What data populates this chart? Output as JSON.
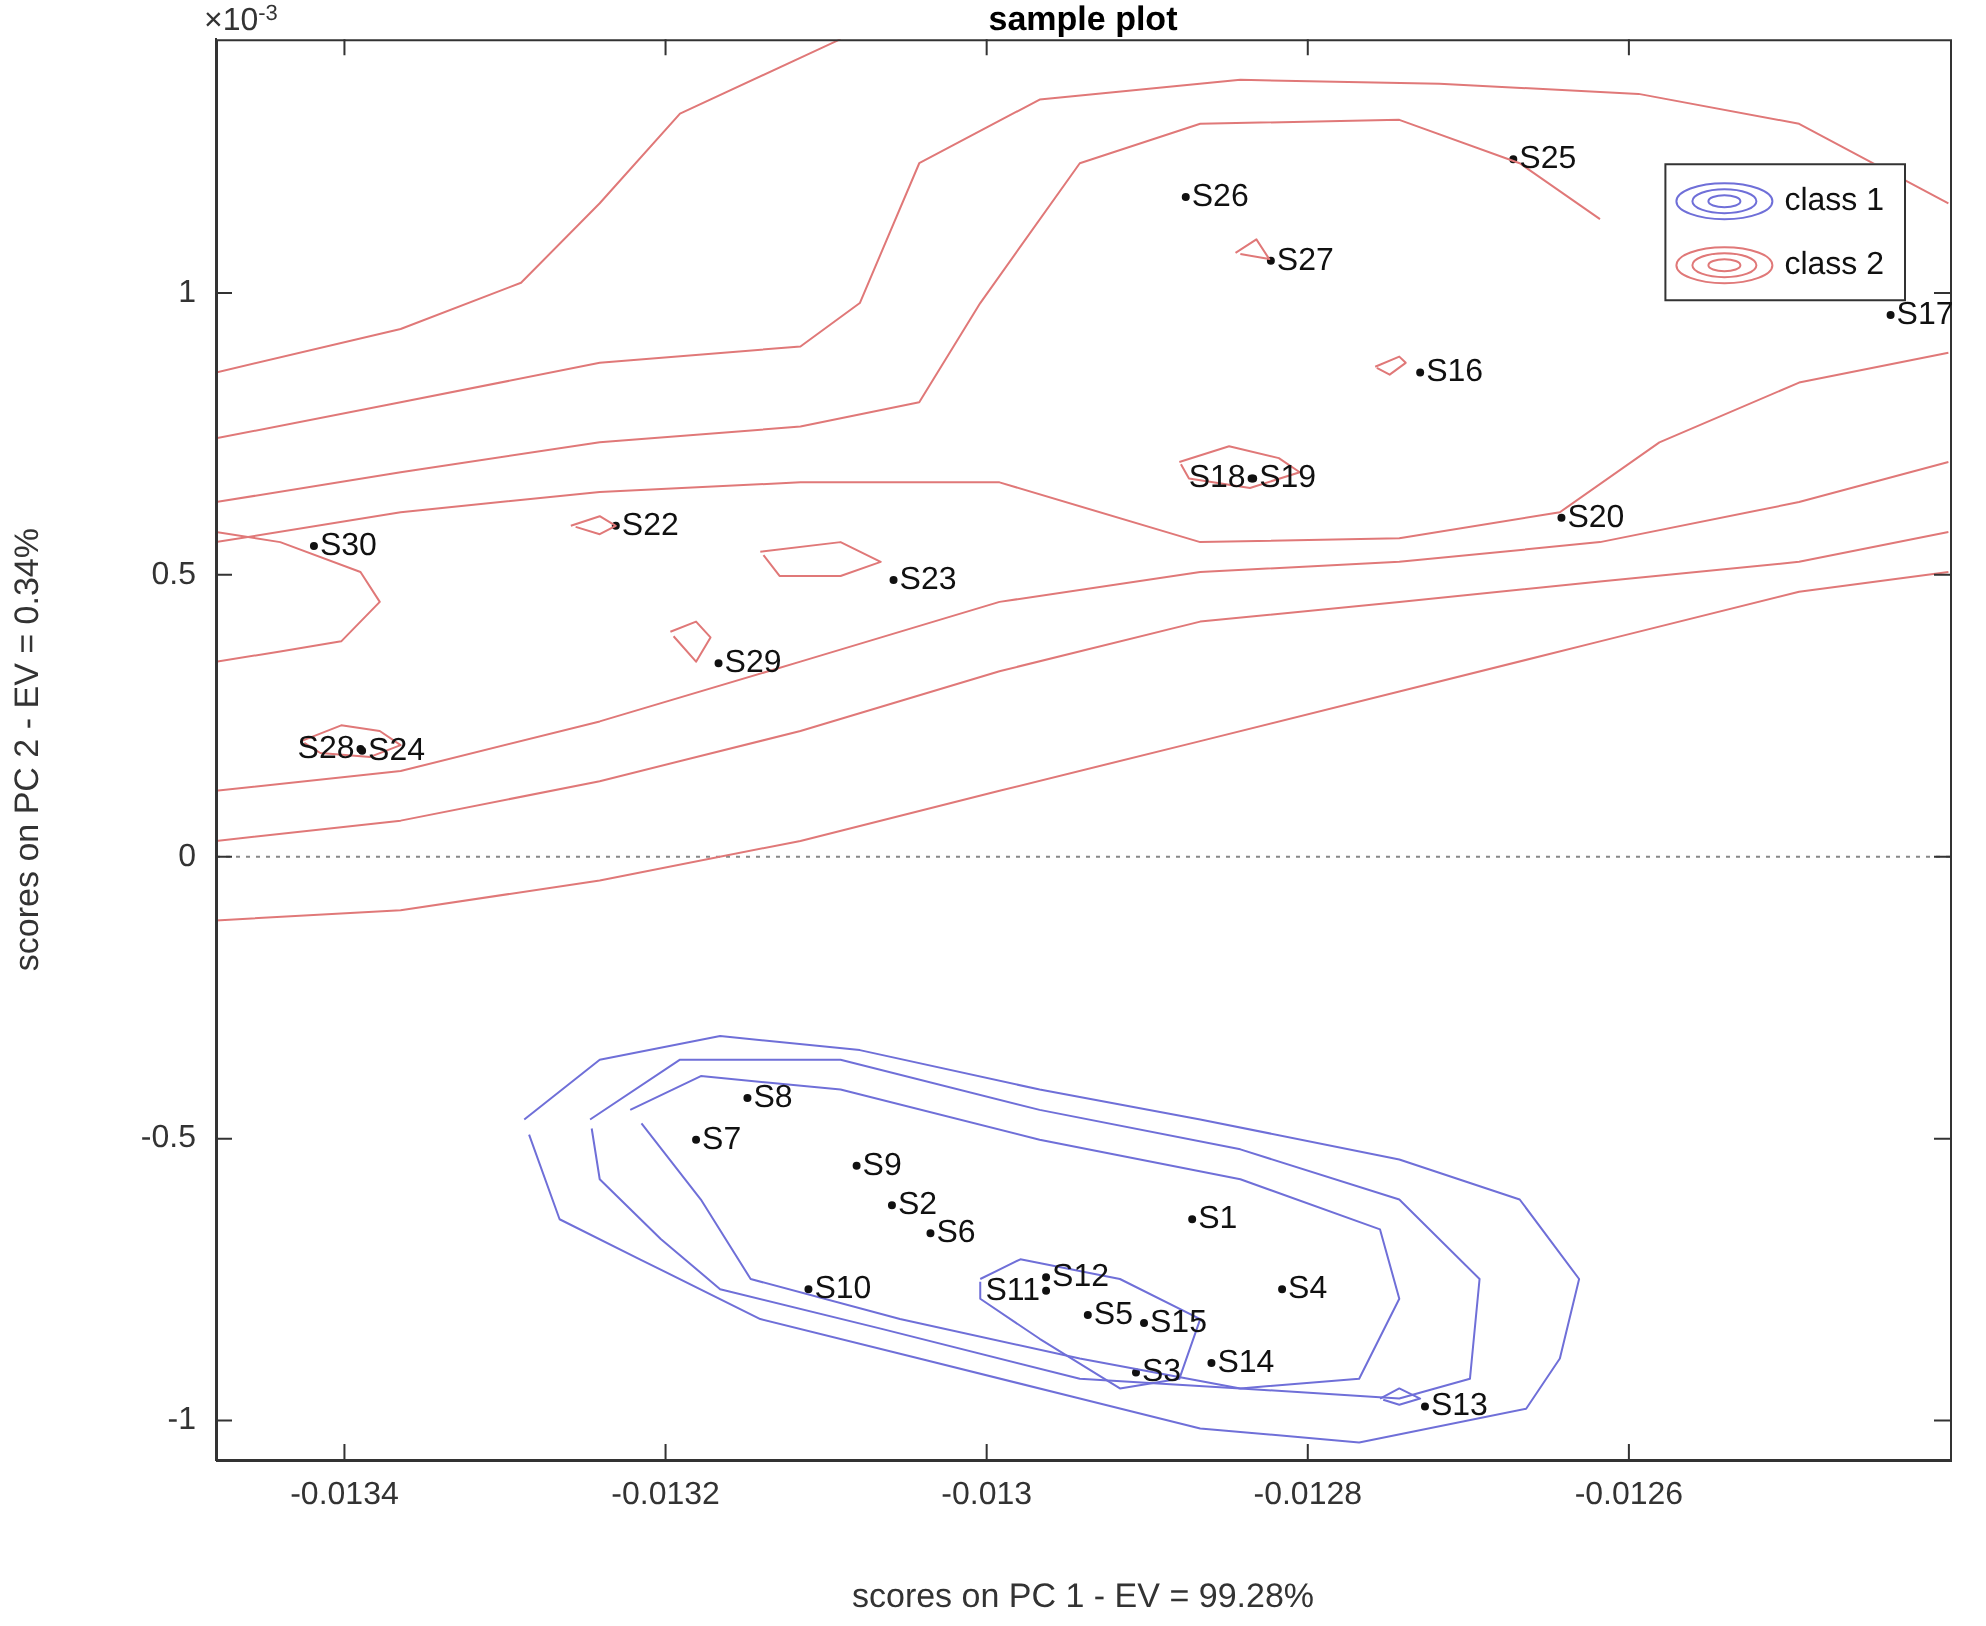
{
  "chart_data": {
    "type": "line",
    "title": "sample plot",
    "xlabel": "scores on PC 1 - EV = 99.28%",
    "ylabel": "scores on PC 2 - EV = 0.34%",
    "xlim": [
      -0.01348,
      -0.0124
    ],
    "ylim": [
      -1.07,
      1.45
    ],
    "xticks": [
      -0.0134,
      -0.0132,
      -0.013,
      -0.0128,
      -0.0126
    ],
    "yticks": [
      -1,
      -0.5,
      0,
      0.5,
      1
    ],
    "grid": false,
    "legend": "top right",
    "marker": "none",
    "line_style": "solid",
    "ref_lines": [
      {
        "axis": "y",
        "value": 0,
        "color": "#888888",
        "line_style": "dotted"
      }
    ],
    "series": [
      {
        "name": "class 1",
        "color": "#6f6fd8",
        "x": [
          -0.013288,
          -0.013241,
          -0.013166,
          -0.013079,
          -0.012967,
          -0.012867,
          -0.012743,
          -0.012668,
          -0.012631,
          -0.012643,
          -0.012664,
          -0.012768,
          -0.012867,
          -0.012942,
          -0.013042,
          -0.013141,
          -0.013216,
          -0.013266,
          -0.013285
        ],
        "values": [
          -0.466,
          -0.36,
          -0.318,
          -0.343,
          -0.413,
          -0.466,
          -0.537,
          -0.608,
          -0.749,
          -0.89,
          -0.979,
          -1.039,
          -1.014,
          -0.961,
          -0.89,
          -0.82,
          -0.714,
          -0.643,
          -0.493
        ]
      },
      {
        "color": "#6f6fd8",
        "x": [
          -0.013247,
          -0.013191,
          -0.013091,
          -0.012967,
          -0.012842,
          -0.012743,
          -0.012693,
          -0.012699,
          -0.012743,
          -0.012842,
          -0.012942,
          -0.013066,
          -0.013166,
          -0.013203,
          -0.013241,
          -0.013246
        ],
        "values": [
          -0.466,
          -0.36,
          -0.36,
          -0.449,
          -0.519,
          -0.608,
          -0.749,
          -0.926,
          -0.961,
          -0.943,
          -0.926,
          -0.837,
          -0.767,
          -0.678,
          -0.572,
          -0.482
        ]
      },
      {
        "color": "#6f6fd8",
        "x": [
          -0.013222,
          -0.013178,
          -0.013091,
          -0.012967,
          -0.012842,
          -0.012755,
          -0.012743,
          -0.012768,
          -0.012842,
          -0.012942,
          -0.013054,
          -0.013147,
          -0.013178,
          -0.013215
        ],
        "values": [
          -0.449,
          -0.389,
          -0.413,
          -0.502,
          -0.572,
          -0.661,
          -0.784,
          -0.926,
          -0.943,
          -0.89,
          -0.82,
          -0.749,
          -0.608,
          -0.473
        ]
      },
      {
        "color": "#6f6fd8",
        "x": [
          -0.013004,
          -0.012979,
          -0.012917,
          -0.012867,
          -0.01288,
          -0.012917,
          -0.012967,
          -0.013004,
          -0.013004
        ],
        "values": [
          -0.749,
          -0.714,
          -0.749,
          -0.82,
          -0.926,
          -0.943,
          -0.855,
          -0.784,
          -0.754
        ]
      },
      {
        "color": "#6f6fd8",
        "x": [
          -0.012755,
          -0.012743,
          -0.01273,
          -0.012743,
          -0.012753
        ],
        "values": [
          -0.961,
          -0.943,
          -0.961,
          -0.972,
          -0.963
        ]
      },
      {
        "name": "class 2",
        "color": "#e07878",
        "x": [
          -0.01348,
          -0.013365,
          -0.01329,
          -0.013241,
          -0.013191,
          -0.013091
        ],
        "values": [
          0.859,
          0.936,
          1.018,
          1.159,
          1.318,
          1.45
        ]
      },
      {
        "color": "#e07878",
        "x": [
          -0.01348,
          -0.013365,
          -0.013241,
          -0.013116,
          -0.013079,
          -0.013042,
          -0.012967,
          -0.012842,
          -0.012718,
          -0.012594,
          -0.012494,
          -0.012401
        ],
        "values": [
          0.742,
          0.806,
          0.876,
          0.905,
          0.982,
          1.23,
          1.343,
          1.378,
          1.371,
          1.353,
          1.3,
          1.159
        ]
      },
      {
        "color": "#e07878",
        "x": [
          -0.01348,
          -0.013365,
          -0.013241,
          -0.013116,
          -0.013042,
          -0.013004,
          -0.012942,
          -0.012867,
          -0.012743,
          -0.012668,
          -0.012618
        ],
        "values": [
          0.629,
          0.682,
          0.735,
          0.763,
          0.806,
          0.982,
          1.23,
          1.3,
          1.307,
          1.23,
          1.131
        ]
      },
      {
        "color": "#e07878",
        "x": [
          -0.01348,
          -0.013365,
          -0.013241,
          -0.013116,
          -0.012992,
          -0.012867,
          -0.012743,
          -0.012643,
          -0.012581,
          -0.012494,
          -0.012401
        ],
        "values": [
          0.558,
          0.611,
          0.647,
          0.664,
          0.664,
          0.558,
          0.565,
          0.611,
          0.735,
          0.841,
          0.894
        ]
      },
      {
        "color": "#e07878",
        "x": [
          -0.01348,
          -0.01344,
          -0.01339,
          -0.013378,
          -0.013402,
          -0.01344,
          -0.01348
        ],
        "values": [
          0.576,
          0.558,
          0.505,
          0.452,
          0.382,
          0.364,
          0.346
        ]
      },
      {
        "color": "#e07878",
        "x": [
          -0.01348,
          -0.013365,
          -0.013241,
          -0.013116,
          -0.012992,
          -0.012867,
          -0.012743,
          -0.012618,
          -0.012494,
          -0.012401
        ],
        "values": [
          0.117,
          0.152,
          0.24,
          0.346,
          0.452,
          0.505,
          0.523,
          0.558,
          0.629,
          0.7
        ]
      },
      {
        "color": "#e07878",
        "x": [
          -0.01348,
          -0.013365,
          -0.013241,
          -0.013116,
          -0.012992,
          -0.012867,
          -0.012743,
          -0.012618,
          -0.012494,
          -0.012401
        ],
        "values": [
          0.028,
          0.064,
          0.134,
          0.223,
          0.329,
          0.417,
          0.452,
          0.488,
          0.523,
          0.576
        ]
      },
      {
        "color": "#e07878",
        "x": [
          -0.01348,
          -0.013365,
          -0.013241,
          -0.013116,
          -0.012992,
          -0.012867,
          -0.012743,
          -0.012618,
          -0.012494,
          -0.012401
        ],
        "values": [
          -0.113,
          -0.095,
          -0.042,
          0.028,
          0.117,
          0.205,
          0.293,
          0.382,
          0.47,
          0.505
        ]
      },
      {
        "color": "#e07878",
        "x": [
          -0.013427,
          -0.013402,
          -0.013378,
          -0.013365,
          -0.013384,
          -0.013415,
          -0.013425
        ],
        "values": [
          0.205,
          0.233,
          0.223,
          0.198,
          0.177,
          0.184,
          0.202
        ]
      },
      {
        "color": "#e07878",
        "x": [
          -0.01288,
          -0.012849,
          -0.012818,
          -0.012805,
          -0.012836,
          -0.012874,
          -0.012879
        ],
        "values": [
          0.7,
          0.728,
          0.707,
          0.682,
          0.654,
          0.671,
          0.696
        ]
      },
      {
        "color": "#e07878",
        "x": [
          -0.013141,
          -0.013091,
          -0.013066,
          -0.013091,
          -0.013129,
          -0.013139
        ],
        "values": [
          0.541,
          0.558,
          0.523,
          0.498,
          0.498,
          0.535
        ]
      },
      {
        "color": "#e07878",
        "x": [
          -0.013259,
          -0.013241,
          -0.013231,
          -0.013241,
          -0.013256
        ],
        "values": [
          0.587,
          0.604,
          0.587,
          0.572,
          0.585
        ]
      },
      {
        "color": "#e07878",
        "x": [
          -0.013197,
          -0.013181,
          -0.013172,
          -0.013181,
          -0.013195
        ],
        "values": [
          0.399,
          0.417,
          0.389,
          0.346,
          0.391
        ]
      },
      {
        "color": "#e07878",
        "x": [
          -0.012758,
          -0.012743,
          -0.012739,
          -0.012749,
          -0.012757
        ],
        "values": [
          0.869,
          0.887,
          0.876,
          0.855,
          0.867
        ]
      },
      {
        "color": "#e07878",
        "x": [
          -0.012845,
          -0.012832,
          -0.012824,
          -0.012842
        ],
        "values": [
          1.071,
          1.095,
          1.06,
          1.069
        ]
      },
      {
        "type": "scatter",
        "color": "#111111",
        "marker": "circle",
        "x": [
          -0.013419,
          -0.013231,
          -0.013058,
          -0.013167,
          -0.013389,
          -0.01339,
          -0.012876,
          -0.012823,
          -0.012672,
          -0.01273,
          -0.012834,
          -0.012835,
          -0.012642,
          -0.012437,
          -0.013149,
          -0.013181,
          -0.013081,
          -0.013059,
          -0.013035,
          -0.012872,
          -0.013111,
          -0.012963,
          -0.012963,
          -0.012937,
          -0.012902,
          -0.012816,
          -0.012907,
          -0.01286,
          -0.012727
        ],
        "values": [
          0.551,
          0.587,
          0.491,
          0.343,
          0.188,
          0.191,
          1.17,
          1.057,
          1.237,
          0.859,
          0.671,
          0.671,
          0.601,
          0.961,
          -0.428,
          -0.502,
          -0.548,
          -0.618,
          -0.668,
          -0.643,
          -0.767,
          -0.746,
          -0.77,
          -0.813,
          -0.827,
          -0.767,
          -0.915,
          -0.898,
          -0.975
        ],
        "value_labels": [
          "S30",
          "S22",
          "S23",
          "S29",
          "S24",
          "S28",
          "S26",
          "S27",
          "S25",
          "S16",
          "S19",
          "S18",
          "S20",
          "S17",
          "S8",
          "S7",
          "S9",
          "S2",
          "S6",
          "S1",
          "S10",
          "S12",
          "S11",
          "S5",
          "S15",
          "S4",
          "S3",
          "S14",
          "S13"
        ]
      }
    ],
    "annotations": [
      "×10$^{-3}$"
    ]
  }
}
